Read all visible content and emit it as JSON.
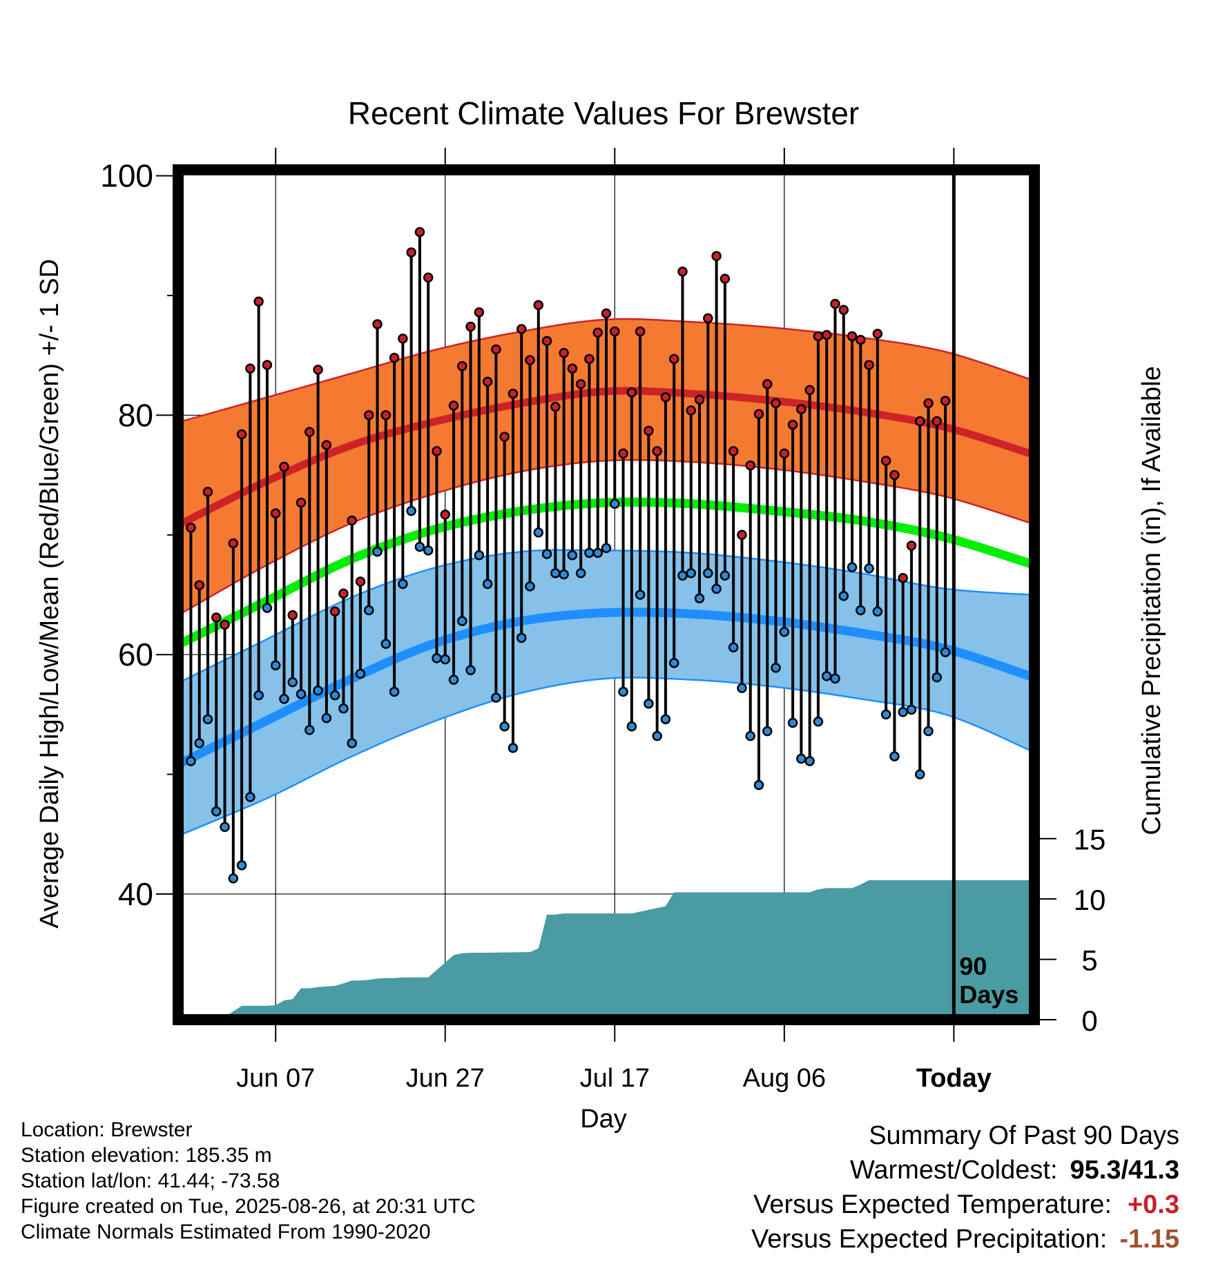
{
  "chart_data": {
    "type": "line",
    "title": "Recent Climate Values For Brewster",
    "xlabel": "Day",
    "ylabel": "Average Daily High/Low/Mean (Red/Blue/Green) +/- 1 SD",
    "y2label": "Cumulative Precipitation (in), If Available",
    "x_ticks": [
      {
        "day": 7,
        "label": "Jun 07"
      },
      {
        "day": 27,
        "label": "Jun 27"
      },
      {
        "day": 47,
        "label": "Jul 17"
      },
      {
        "day": 67,
        "label": "Aug 06"
      },
      {
        "day": 87,
        "label": "Today"
      }
    ],
    "xlim": [
      -4.5,
      96.5
    ],
    "ylim": [
      29.5,
      100.5
    ],
    "y_ticks": [
      40,
      60,
      80,
      100
    ],
    "y_minor_ticks": [
      50,
      70,
      90
    ],
    "y2lim": [
      0,
      70.4
    ],
    "y2_ticks": [
      0,
      5,
      10,
      15
    ],
    "today_marker_label": [
      "90",
      "Days"
    ],
    "normals": {
      "days": [
        -4,
        6,
        16,
        26,
        36,
        46,
        56,
        66,
        76,
        86,
        96
      ],
      "high_mean": [
        71.0,
        74.5,
        77.5,
        79.5,
        81.0,
        82.0,
        81.8,
        81.2,
        80.3,
        79.0,
        76.8
      ],
      "high_upper": [
        79.5,
        81.5,
        83.5,
        85.5,
        87.0,
        88.0,
        87.8,
        87.3,
        86.5,
        85.3,
        83.0
      ],
      "high_lower": [
        63.5,
        67.5,
        71.0,
        73.5,
        75.3,
        76.2,
        76.1,
        75.5,
        74.5,
        73.2,
        71.0
      ],
      "mean": [
        61.0,
        64.5,
        68.0,
        70.5,
        72.0,
        72.7,
        72.6,
        72.0,
        71.2,
        69.8,
        67.6
      ],
      "low_mean": [
        51.0,
        54.5,
        58.0,
        61.0,
        62.8,
        63.5,
        63.4,
        62.8,
        61.8,
        60.5,
        58.2
      ],
      "low_upper": [
        57.8,
        61.3,
        64.8,
        67.3,
        68.6,
        68.7,
        68.5,
        67.8,
        66.8,
        65.5,
        65.0
      ],
      "low_lower": [
        45.0,
        48.0,
        51.5,
        54.5,
        56.8,
        58.0,
        57.9,
        57.3,
        56.3,
        55.0,
        52.0
      ]
    },
    "observations": {
      "days": [
        -3,
        -2,
        -1,
        0,
        1,
        2,
        3,
        4,
        5,
        6,
        7,
        8,
        9,
        10,
        11,
        12,
        13,
        14,
        15,
        16,
        17,
        18,
        19,
        20,
        21,
        22,
        23,
        24,
        25,
        26,
        27,
        28,
        29,
        30,
        31,
        32,
        33,
        34,
        35,
        36,
        37,
        38,
        39,
        40,
        41,
        42,
        43,
        44,
        45,
        46,
        47,
        48,
        49,
        50,
        51,
        52,
        53,
        54,
        55,
        56,
        57,
        58,
        59,
        60,
        61,
        62,
        63,
        64,
        65,
        66,
        67,
        68,
        69,
        70,
        71,
        72,
        73,
        74,
        75,
        76,
        77,
        78,
        79,
        80,
        81,
        82,
        83,
        84,
        85,
        86
      ],
      "high": [
        70.6,
        65.8,
        73.6,
        63.1,
        62.5,
        69.3,
        78.4,
        83.9,
        89.5,
        84.2,
        71.8,
        75.7,
        63.3,
        72.7,
        78.6,
        83.8,
        77.5,
        63.6,
        65.1,
        71.2,
        66.1,
        80.0,
        87.6,
        80.0,
        84.8,
        86.4,
        93.6,
        95.3,
        91.5,
        77.0,
        71.7,
        80.8,
        84.1,
        87.4,
        88.6,
        82.8,
        85.5,
        78.2,
        81.8,
        87.2,
        84.6,
        89.2,
        86.2,
        80.7,
        85.2,
        83.9,
        82.6,
        84.7,
        86.9,
        88.5,
        87.0,
        76.8,
        81.9,
        87.0,
        78.7,
        77.0,
        81.5,
        84.7,
        92.0,
        80.4,
        81.3,
        88.1,
        93.3,
        91.4,
        77.0,
        70.0,
        75.8,
        80.1,
        82.6,
        81.0,
        76.8,
        79.2,
        80.5,
        82.1,
        86.6,
        86.7,
        89.3,
        88.8,
        86.6,
        86.3,
        84.2,
        86.8,
        76.2,
        75.0,
        66.4,
        69.1,
        79.5,
        81.0,
        79.5,
        81.2
      ],
      "low": [
        51.1,
        52.6,
        54.6,
        46.9,
        45.6,
        41.3,
        42.4,
        48.1,
        56.6,
        63.9,
        59.1,
        56.3,
        57.7,
        56.7,
        53.7,
        57.0,
        54.7,
        56.6,
        55.5,
        52.6,
        58.4,
        63.7,
        68.6,
        60.9,
        56.9,
        65.9,
        72.0,
        69.0,
        68.7,
        59.7,
        59.6,
        57.9,
        62.8,
        58.7,
        68.3,
        65.9,
        56.4,
        54.0,
        52.2,
        61.4,
        65.7,
        70.2,
        68.4,
        66.8,
        66.7,
        68.3,
        66.8,
        68.5,
        68.5,
        68.9,
        72.6,
        56.9,
        54.0,
        65.0,
        55.9,
        53.2,
        54.6,
        59.3,
        66.6,
        66.8,
        64.7,
        66.8,
        65.5,
        66.6,
        60.6,
        57.2,
        53.2,
        49.1,
        53.6,
        58.9,
        61.9,
        54.3,
        51.3,
        51.1,
        54.4,
        58.2,
        58.0,
        64.9,
        67.3,
        63.7,
        67.2,
        63.6,
        55.0,
        51.5,
        55.2,
        55.4,
        50.0,
        53.6,
        58.1,
        60.2
      ]
    },
    "precipitation": {
      "days": [
        -3,
        0.5,
        3,
        4,
        5,
        6,
        7,
        8,
        9,
        10,
        11,
        12,
        13,
        14,
        15,
        16,
        17,
        18,
        19,
        20,
        21,
        22,
        23,
        25,
        28,
        29,
        30,
        31,
        32,
        37,
        38,
        39,
        40,
        41,
        42,
        43,
        44,
        49,
        52,
        53,
        54,
        55,
        56,
        57,
        58,
        59,
        60,
        61,
        62,
        64,
        67,
        68,
        69,
        70,
        71,
        72,
        73,
        74,
        75,
        76,
        77,
        78,
        79,
        80,
        81,
        82,
        83,
        84,
        85,
        86,
        87,
        88,
        89,
        90,
        91,
        92,
        93,
        94,
        95,
        96
      ],
      "cumulative": [
        0.0,
        0.0,
        1.15,
        1.15,
        1.15,
        1.15,
        1.2,
        1.6,
        1.7,
        2.6,
        2.6,
        2.7,
        2.75,
        2.8,
        3.0,
        3.25,
        3.25,
        3.3,
        3.4,
        3.45,
        3.45,
        3.5,
        3.5,
        3.5,
        5.35,
        5.5,
        5.55,
        5.55,
        5.55,
        5.6,
        5.9,
        8.7,
        8.7,
        8.8,
        8.8,
        8.8,
        8.8,
        8.8,
        9.25,
        9.4,
        10.55,
        10.55,
        10.55,
        10.55,
        10.55,
        10.55,
        10.55,
        10.55,
        10.55,
        10.55,
        10.55,
        10.55,
        10.55,
        10.55,
        10.8,
        10.9,
        10.9,
        10.9,
        10.9,
        11.2,
        11.55,
        11.55,
        11.55,
        11.55,
        11.55,
        11.55,
        11.55,
        11.55,
        11.55,
        11.55,
        11.55,
        11.55,
        11.55,
        11.55,
        11.55,
        11.55,
        11.55,
        11.55,
        11.55,
        11.55
      ]
    },
    "colors": {
      "high_band": "#f47a32",
      "high_line": "#cc2228",
      "mean_line": "#00ee00",
      "low_band": "#85c1e9",
      "low_line": "#1f8fff",
      "precip": "#4a9ba3",
      "high_dot": "#c8202a",
      "low_dot": "#2f8ad6"
    }
  },
  "footer": {
    "location": "Location: Brewster",
    "elevation": "Station elevation: 185.35 m",
    "latlon": "Station lat/lon: 41.44; -73.58",
    "created": "Figure created on Tue, 2025-08-26, at 20:31 UTC",
    "normals": "Climate Normals Estimated From 1990-2020"
  },
  "summary": {
    "title": "Summary Of Past 90 Days",
    "warmest_coldest_label": "Warmest/Coldest:",
    "warmest_coldest_value": "95.3/41.3",
    "temp_label": "Versus Expected Temperature:",
    "temp_value": "+0.3",
    "precip_label": "Versus Expected Precipitation:",
    "precip_value": "-1.15"
  }
}
